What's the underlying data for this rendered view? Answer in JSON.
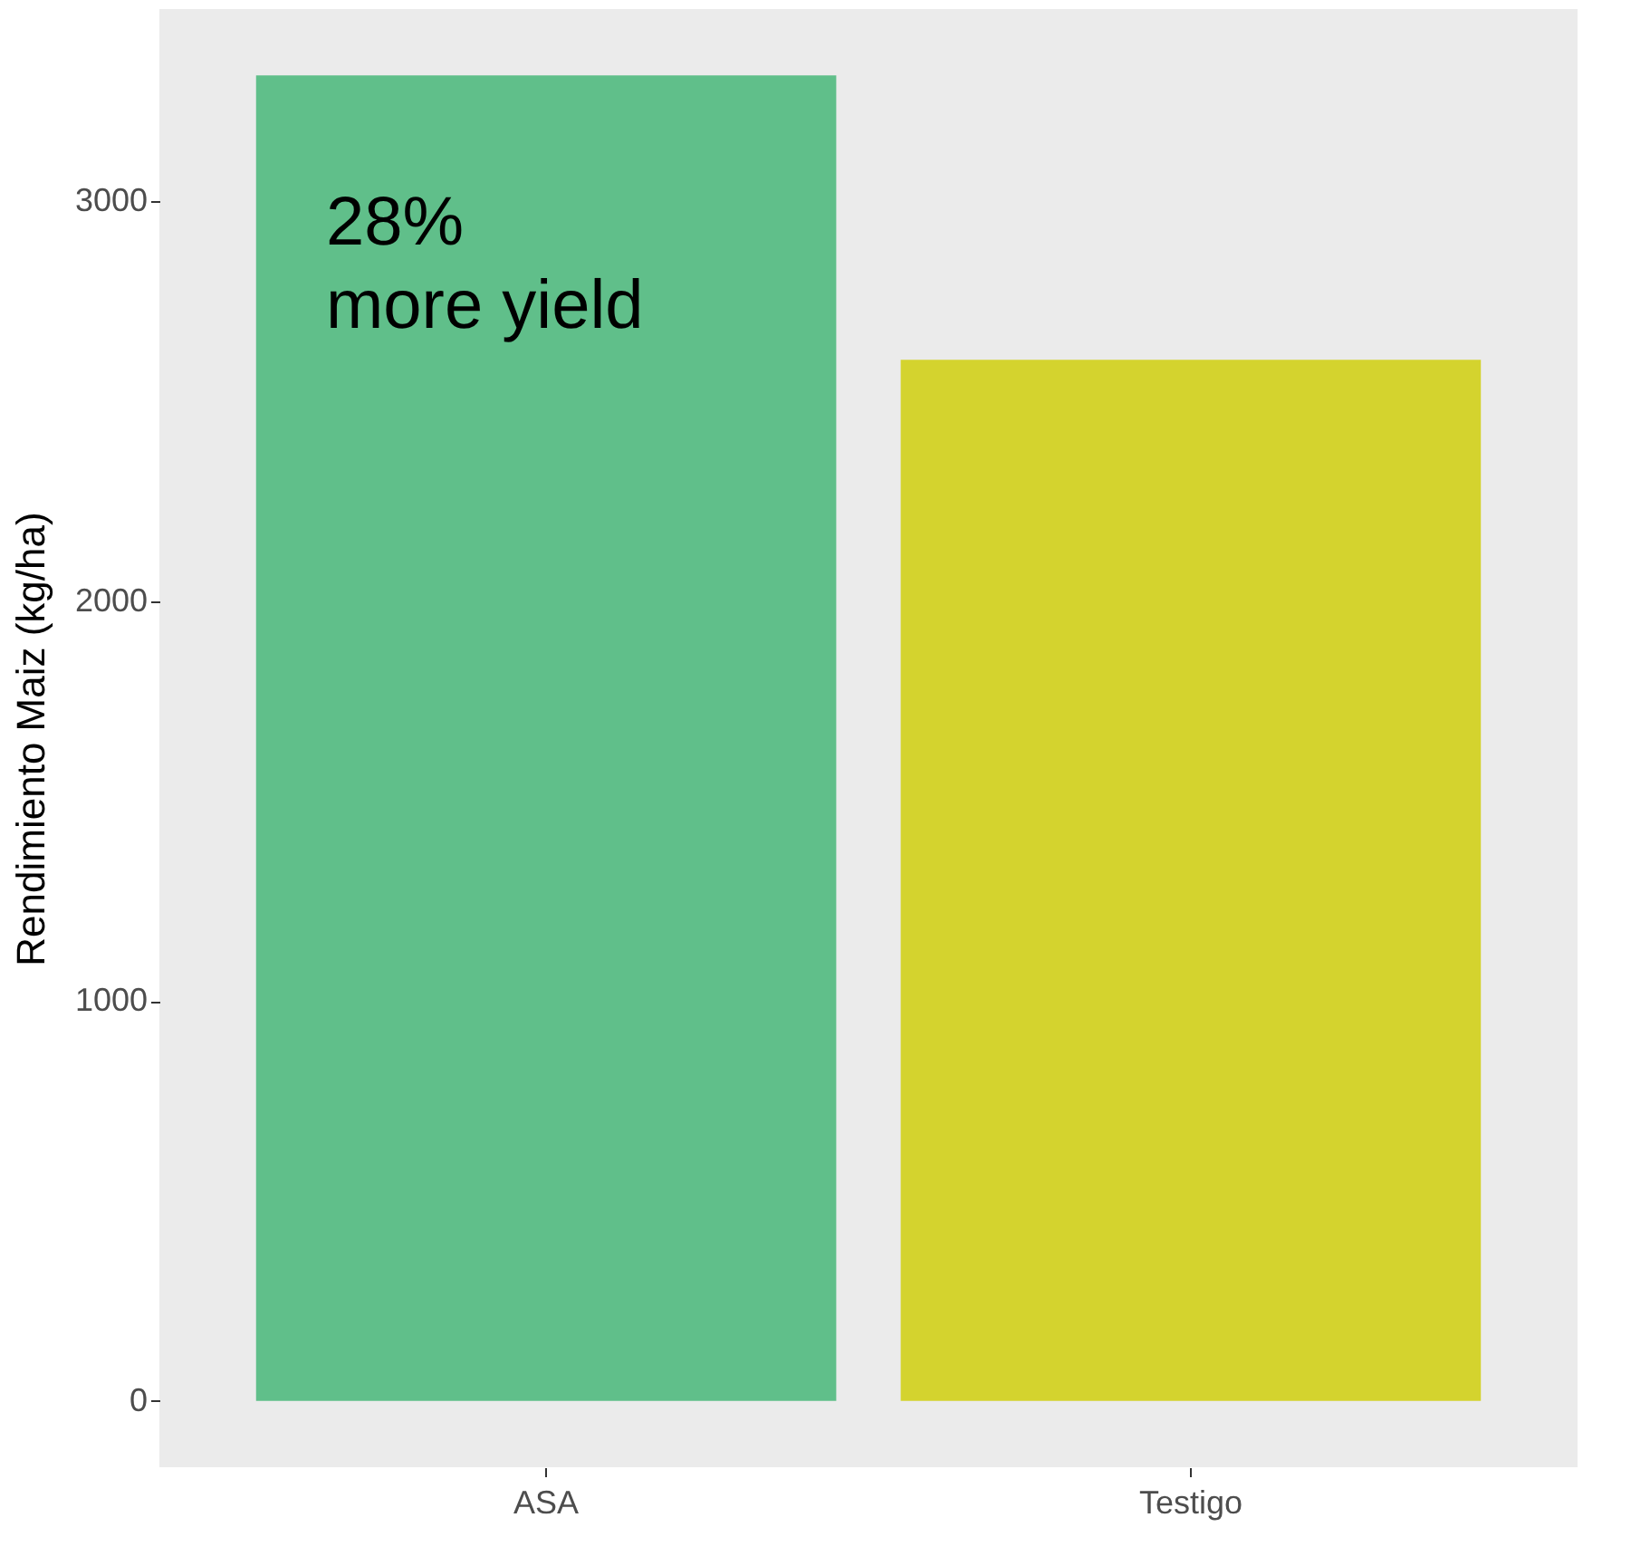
{
  "chart_data": {
    "type": "bar",
    "ylabel": "Rendimiento Maiz (kg/ha)",
    "categories": [
      "ASA",
      "Testigo"
    ],
    "values": [
      3315,
      2604
    ],
    "colors": [
      "#60bf8a",
      "#d4d32e"
    ],
    "ylim": [
      -166,
      3481
    ],
    "yticks": [
      0,
      1000,
      2000,
      3000
    ],
    "grid": false,
    "annotations": [
      "28%\nmore yield"
    ]
  }
}
